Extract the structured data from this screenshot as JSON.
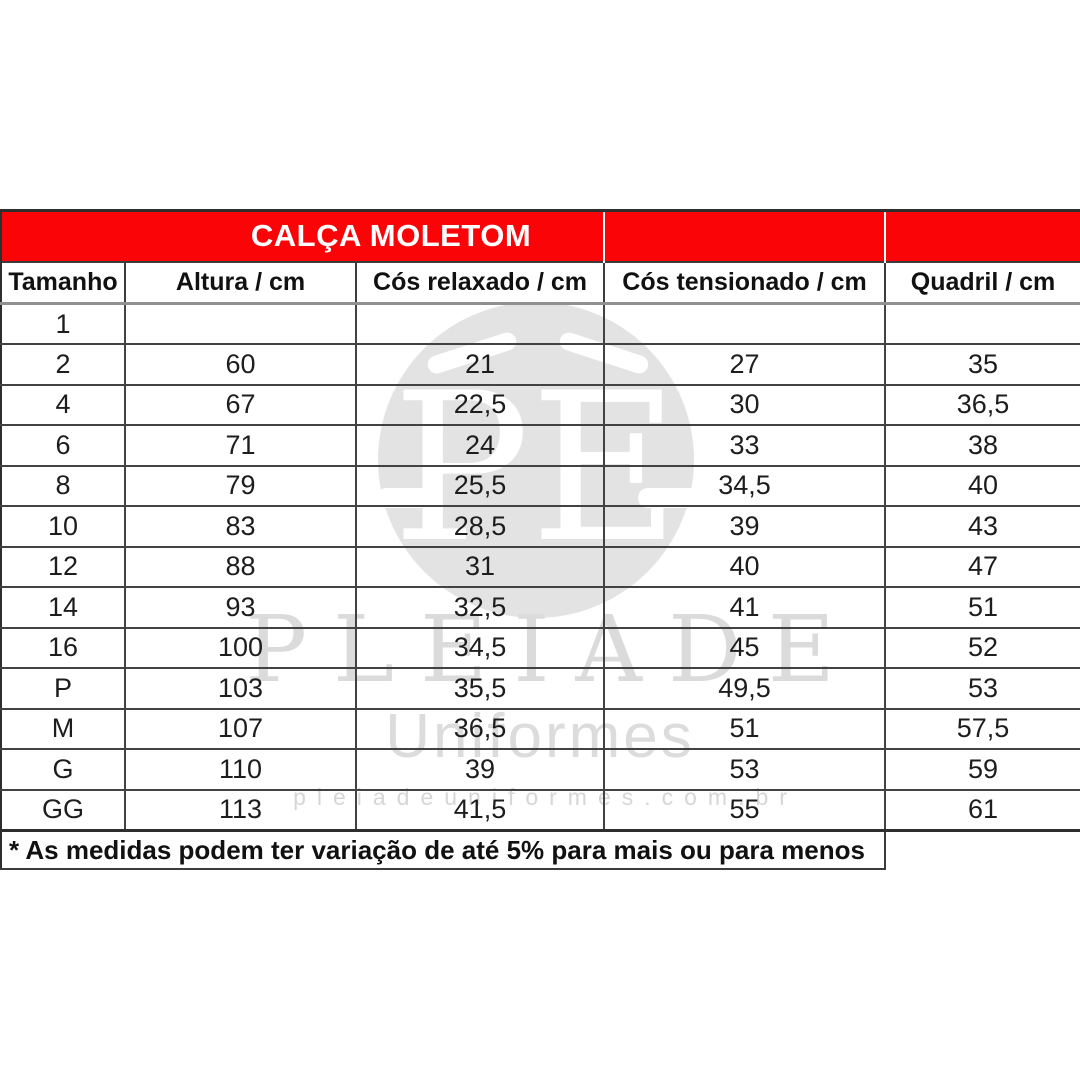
{
  "chart_data": {
    "type": "table",
    "title": "CALÇA MOLETOM",
    "columns": [
      "Tamanho",
      "Altura / cm",
      "Cós relaxado / cm",
      "Cós tensionado / cm",
      "Quadril / cm"
    ],
    "rows": [
      [
        "1",
        "",
        "",
        "",
        ""
      ],
      [
        "2",
        "60",
        "21",
        "27",
        "35"
      ],
      [
        "4",
        "67",
        "22,5",
        "30",
        "36,5"
      ],
      [
        "6",
        "71",
        "24",
        "33",
        "38"
      ],
      [
        "8",
        "79",
        "25,5",
        "34,5",
        "40"
      ],
      [
        "10",
        "83",
        "28,5",
        "39",
        "43"
      ],
      [
        "12",
        "88",
        "31",
        "40",
        "47"
      ],
      [
        "14",
        "93",
        "32,5",
        "41",
        "51"
      ],
      [
        "16",
        "100",
        "34,5",
        "45",
        "52"
      ],
      [
        "P",
        "103",
        "35,5",
        "49,5",
        "53"
      ],
      [
        "M",
        "107",
        "36,5",
        "51",
        "57,5"
      ],
      [
        "G",
        "110",
        "39",
        "53",
        "59"
      ],
      [
        "GG",
        "113",
        "41,5",
        "55",
        "61"
      ]
    ],
    "footnote": "* As medidas podem ter variação de até 5% para mais ou para menos"
  },
  "watermark": {
    "monogram": "PE",
    "brand": "PLEIADE",
    "subtitle": "Uniformes",
    "url": "pleiadeuniformes.com.br"
  },
  "colors": {
    "header_red": "#fb0408",
    "title_text": "#ffffff",
    "table_text": "#1d1d1d",
    "border_dark": "#2e2e2e",
    "watermark_grey": "#dbdbdb",
    "logo_grey": "#e3e3e3"
  }
}
